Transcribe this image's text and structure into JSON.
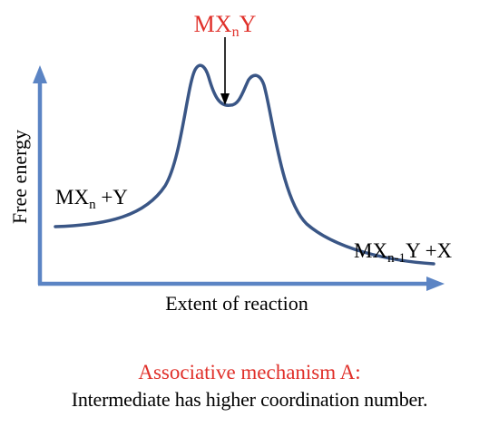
{
  "diagram": {
    "y_axis_label": "Free energy",
    "x_axis_label": "Extent of reaction",
    "reactants": {
      "base": "MX",
      "sub": "n",
      "tail": " +Y"
    },
    "intermediate": {
      "base": "MX",
      "sub": "n",
      "tail": "Y"
    },
    "products": {
      "base": "MX",
      "sub": "n-1",
      "tail": "Y +X"
    }
  },
  "caption": {
    "title": "Associative mechanism A:",
    "text": "Intermediate has higher coordination number."
  },
  "colors": {
    "curve": "#3a5686",
    "axis": "#5b84c4",
    "accent": "#e0302a",
    "text": "#000000"
  }
}
